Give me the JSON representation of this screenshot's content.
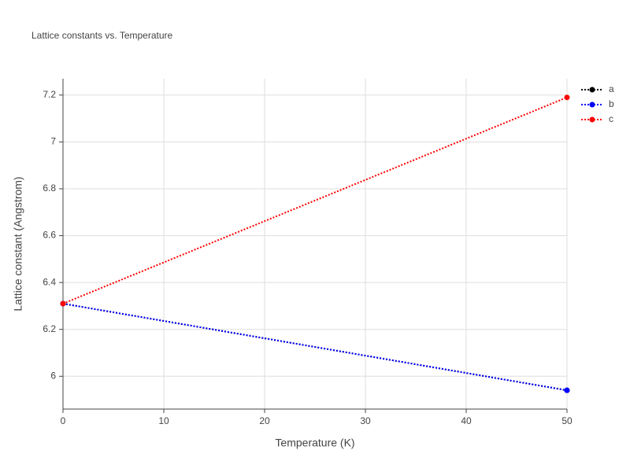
{
  "chart_data": {
    "type": "line",
    "title": "Lattice constants vs. Temperature",
    "x_label": "Temperature (K)",
    "y_label": "Lattice constant (Angstrom)",
    "x": [
      0,
      50
    ],
    "series": [
      {
        "name": "a",
        "color": "#000000",
        "values": [
          6.31,
          5.94
        ]
      },
      {
        "name": "b",
        "color": "#0000ff",
        "values": [
          6.31,
          5.94
        ]
      },
      {
        "name": "c",
        "color": "#ff0000",
        "values": [
          6.31,
          7.19
        ]
      }
    ],
    "xlim": [
      0,
      50
    ],
    "xticks": [
      0,
      10,
      20,
      30,
      40,
      50
    ],
    "ylim": [
      5.86,
      7.27
    ],
    "yticks": [
      6,
      6.2,
      6.4,
      6.6,
      6.8,
      7,
      7.2
    ],
    "grid": true,
    "legend": "top-right"
  }
}
